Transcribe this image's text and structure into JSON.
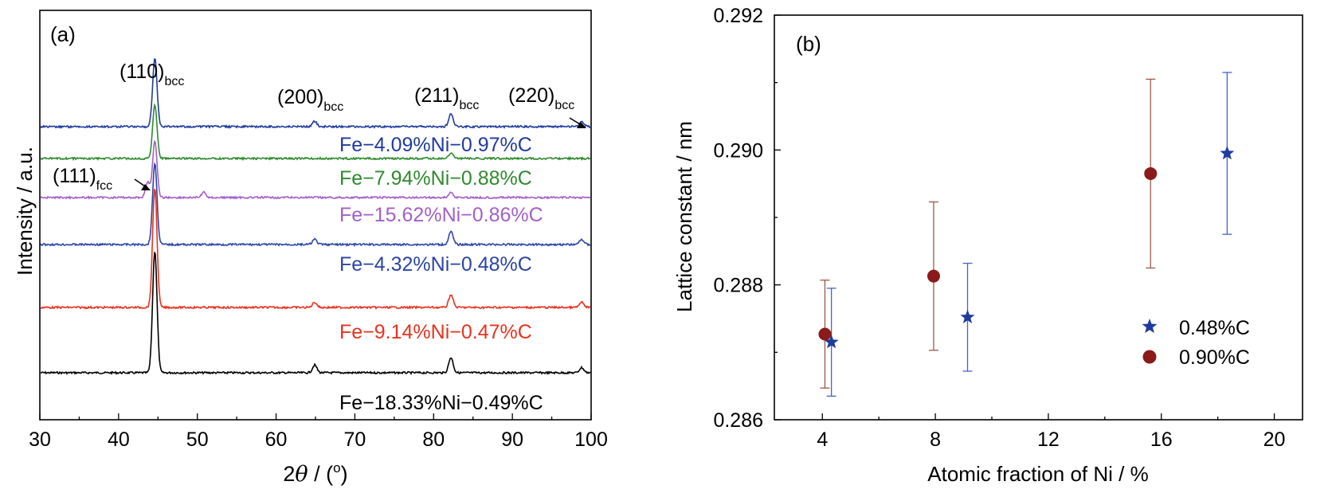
{
  "colors": {
    "black": "#000000",
    "red": "#e8321e",
    "blue": "#2b45a6",
    "purple": "#a35fc9",
    "green": "#2f8a2f",
    "navy": "#1f3b9e",
    "darkred": "#8b1a1a",
    "brown": "#9a5a48"
  },
  "chart_data": [
    {
      "type": "line",
      "panel": "(a)",
      "xlabel_prefix": "2",
      "xlabel_theta": "θ",
      "xlabel_suffix": " / (",
      "xlabel_degree": "o",
      "xlabel_close": ")",
      "ylabel": "Intensity / a.u.",
      "xlim": [
        30,
        100
      ],
      "xticks": [
        "30",
        "40",
        "50",
        "60",
        "70",
        "80",
        "90",
        "100"
      ],
      "series": [
        {
          "name": "Fe−18.33%Ni−0.49%C",
          "color": "black",
          "peaks": [
            {
              "x": 44.6,
              "h": 0.48
            },
            {
              "x": 64.9,
              "h": 0.03
            },
            {
              "x": 82.2,
              "h": 0.06
            },
            {
              "x": 98.8,
              "h": 0.02
            }
          ]
        },
        {
          "name": "Fe−9.14%Ni−0.47%C",
          "color": "red",
          "peaks": [
            {
              "x": 44.6,
              "h": 0.47
            },
            {
              "x": 64.9,
              "h": 0.02
            },
            {
              "x": 82.2,
              "h": 0.05
            },
            {
              "x": 98.8,
              "h": 0.02
            }
          ]
        },
        {
          "name": "Fe−4.32%Ni−0.48%C",
          "color": "blue",
          "peaks": [
            {
              "x": 44.6,
              "h": 0.32
            },
            {
              "x": 64.9,
              "h": 0.02
            },
            {
              "x": 82.2,
              "h": 0.05
            },
            {
              "x": 98.8,
              "h": 0.02
            }
          ]
        },
        {
          "name": "Fe−15.62%Ni−0.86%C",
          "color": "purple",
          "peaks": [
            {
              "x": 43.7,
              "h": 0.06
            },
            {
              "x": 44.6,
              "h": 0.22
            },
            {
              "x": 50.8,
              "h": 0.02
            },
            {
              "x": 82.2,
              "h": 0.02
            }
          ]
        },
        {
          "name": "Fe−7.94%Ni−0.88%C",
          "color": "green",
          "peaks": [
            {
              "x": 44.6,
              "h": 0.21
            },
            {
              "x": 82.2,
              "h": 0.02
            }
          ]
        },
        {
          "name": "Fe−4.09%Ni−0.97%C",
          "color": "navy",
          "peaks": [
            {
              "x": 44.6,
              "h": 0.27
            },
            {
              "x": 64.9,
              "h": 0.02
            },
            {
              "x": 82.2,
              "h": 0.05
            },
            {
              "x": 98.8,
              "h": 0.02
            }
          ]
        }
      ],
      "annotations": [
        {
          "main": "(110)",
          "sub": "bcc"
        },
        {
          "main": "(200)",
          "sub": "bcc"
        },
        {
          "main": "(211)",
          "sub": "bcc"
        },
        {
          "main": "(220)",
          "sub": "bcc"
        },
        {
          "main": "(111)",
          "sub": "fcc"
        }
      ]
    },
    {
      "type": "scatter",
      "panel": "(b)",
      "xlabel": "Atomic fraction of Ni / %",
      "ylabel": "Lattice constant / nm",
      "xlim": [
        2.3,
        21
      ],
      "ylim": [
        0.286,
        0.292
      ],
      "xticks": [
        "4",
        "8",
        "12",
        "16",
        "20"
      ],
      "yticks": [
        "0.286",
        "0.288",
        "0.290",
        "0.292"
      ],
      "legend_position": "right",
      "series": [
        {
          "name": "0.48%C",
          "marker": "star",
          "color": "navy",
          "points": [
            {
              "x": 4.32,
              "y": 0.28715,
              "err": 0.0008
            },
            {
              "x": 9.14,
              "y": 0.28752,
              "err": 0.0008
            },
            {
              "x": 18.33,
              "y": 0.28995,
              "err": 0.0012
            }
          ]
        },
        {
          "name": "0.90%C",
          "marker": "circle",
          "color": "darkred",
          "points": [
            {
              "x": 4.09,
              "y": 0.28727,
              "err": 0.0008
            },
            {
              "x": 7.94,
              "y": 0.28813,
              "err": 0.0011
            },
            {
              "x": 15.62,
              "y": 0.28965,
              "err": 0.0014
            }
          ]
        }
      ]
    }
  ]
}
